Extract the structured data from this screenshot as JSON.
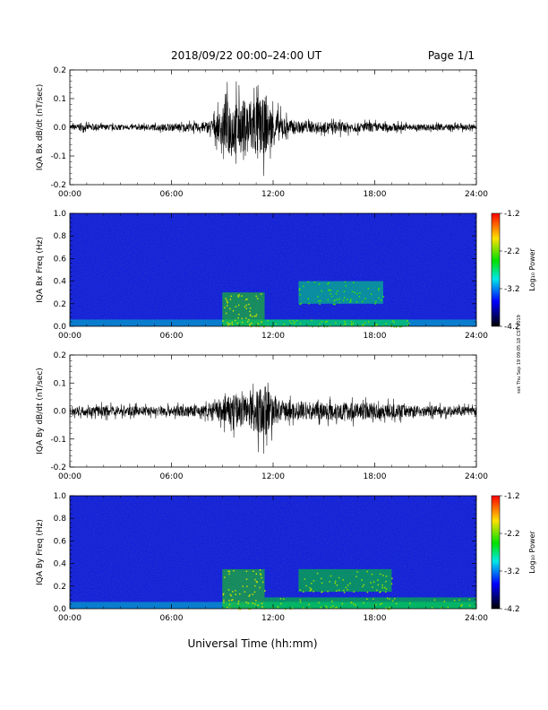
{
  "header": {
    "date_range": "2018/09/22  00:00–24:00 UT",
    "page": "Page 1/1"
  },
  "footer": {
    "xlabel": "Universal Time (hh:mm)",
    "side_note": "ssk Thu Sep 19 09:05:18 CST 2019"
  },
  "colorbar": {
    "label": "Log₁₀ Power",
    "ticks": [
      "-1.2",
      "-2.2",
      "-3.2",
      "-4.2"
    ],
    "range": [
      -4.2,
      -1.2
    ],
    "colors": [
      "#ff0000",
      "#ffe000",
      "#00e000",
      "#00e8e8",
      "#0000ff",
      "#000000"
    ]
  },
  "x_ticks": [
    "00:00",
    "06:00",
    "12:00",
    "18:00",
    "24:00"
  ],
  "chart_data": [
    {
      "type": "line",
      "title": "",
      "ylabel": "IQA Bx dB/dt (nT/sec)",
      "xlabel": "",
      "xlim": [
        0,
        24
      ],
      "ylim": [
        -0.2,
        0.2
      ],
      "y_ticks": [
        "0.2",
        "0.1",
        "0.0",
        "-0.1",
        "-0.2"
      ],
      "color": "#000000",
      "series": [
        {
          "x": [
            0,
            1,
            2,
            3,
            4,
            5,
            6,
            7,
            8,
            8.5,
            9,
            9.5,
            10,
            10.5,
            11,
            11.5,
            12,
            12.5,
            13,
            13.5,
            14,
            15,
            16,
            17,
            18,
            19,
            20,
            21,
            22,
            23,
            24
          ],
          "values": [
            0.018,
            0.02,
            0.018,
            0.018,
            0.017,
            0.02,
            0.022,
            0.025,
            0.03,
            0.06,
            0.12,
            0.2,
            0.16,
            0.19,
            0.2,
            0.17,
            0.12,
            0.07,
            0.05,
            0.04,
            0.035,
            0.035,
            0.035,
            0.03,
            0.03,
            0.025,
            0.022,
            0.02,
            0.02,
            0.018,
            0.018
          ]
        }
      ]
    },
    {
      "type": "heatmap",
      "title": "",
      "ylabel": "IQA Bx Freq (Hz)",
      "xlabel": "",
      "xlim": [
        0,
        24
      ],
      "ylim": [
        0.0,
        1.0
      ],
      "y_ticks": [
        "1.0",
        "0.8",
        "0.6",
        "0.4",
        "0.2",
        "0.0"
      ],
      "z_label": "Log₁₀ Power",
      "zlim": [
        -4.2,
        -1.2
      ],
      "features": [
        {
          "x_start": 9.0,
          "x_end": 11.5,
          "f_low": 0.0,
          "f_high": 0.3,
          "level": -2.4
        },
        {
          "x_start": 11.5,
          "x_end": 20.0,
          "f_low": 0.0,
          "f_high": 0.06,
          "level": -2.6
        },
        {
          "x_start": 13.5,
          "x_end": 18.5,
          "f_low": 0.2,
          "f_high": 0.4,
          "level": -2.7
        }
      ]
    },
    {
      "type": "line",
      "title": "",
      "ylabel": "IQA By dB/dt (nT/sec)",
      "xlabel": "",
      "xlim": [
        0,
        24
      ],
      "ylim": [
        -0.2,
        0.2
      ],
      "y_ticks": [
        "0.2",
        "0.1",
        "0.0",
        "-0.1",
        "-0.2"
      ],
      "color": "#000000",
      "series": [
        {
          "x": [
            0,
            1,
            2,
            3,
            4,
            5,
            6,
            7,
            8,
            8.5,
            9,
            9.5,
            10,
            10.5,
            11,
            11.5,
            12,
            12.5,
            13,
            13.5,
            14,
            15,
            16,
            17,
            18,
            19,
            20,
            21,
            22,
            23,
            24
          ],
          "values": [
            0.03,
            0.03,
            0.035,
            0.03,
            0.03,
            0.03,
            0.035,
            0.035,
            0.04,
            0.05,
            0.08,
            0.1,
            0.12,
            0.1,
            0.14,
            0.19,
            0.1,
            0.07,
            0.06,
            0.06,
            0.06,
            0.055,
            0.06,
            0.055,
            0.055,
            0.045,
            0.04,
            0.035,
            0.03,
            0.03,
            0.025
          ]
        }
      ]
    },
    {
      "type": "heatmap",
      "title": "",
      "ylabel": "IQA By Freq (Hz)",
      "xlabel": "",
      "xlim": [
        0,
        24
      ],
      "ylim": [
        0.0,
        1.0
      ],
      "y_ticks": [
        "1.0",
        "0.8",
        "0.6",
        "0.4",
        "0.2",
        "0.0"
      ],
      "z_label": "Log₁₀ Power",
      "zlim": [
        -4.2,
        -1.2
      ],
      "features": [
        {
          "x_start": 9.0,
          "x_end": 11.5,
          "f_low": 0.0,
          "f_high": 0.35,
          "level": -2.4
        },
        {
          "x_start": 11.5,
          "x_end": 24.0,
          "f_low": 0.0,
          "f_high": 0.1,
          "level": -2.5
        },
        {
          "x_start": 13.5,
          "x_end": 19.0,
          "f_low": 0.15,
          "f_high": 0.35,
          "level": -2.5
        }
      ]
    }
  ]
}
